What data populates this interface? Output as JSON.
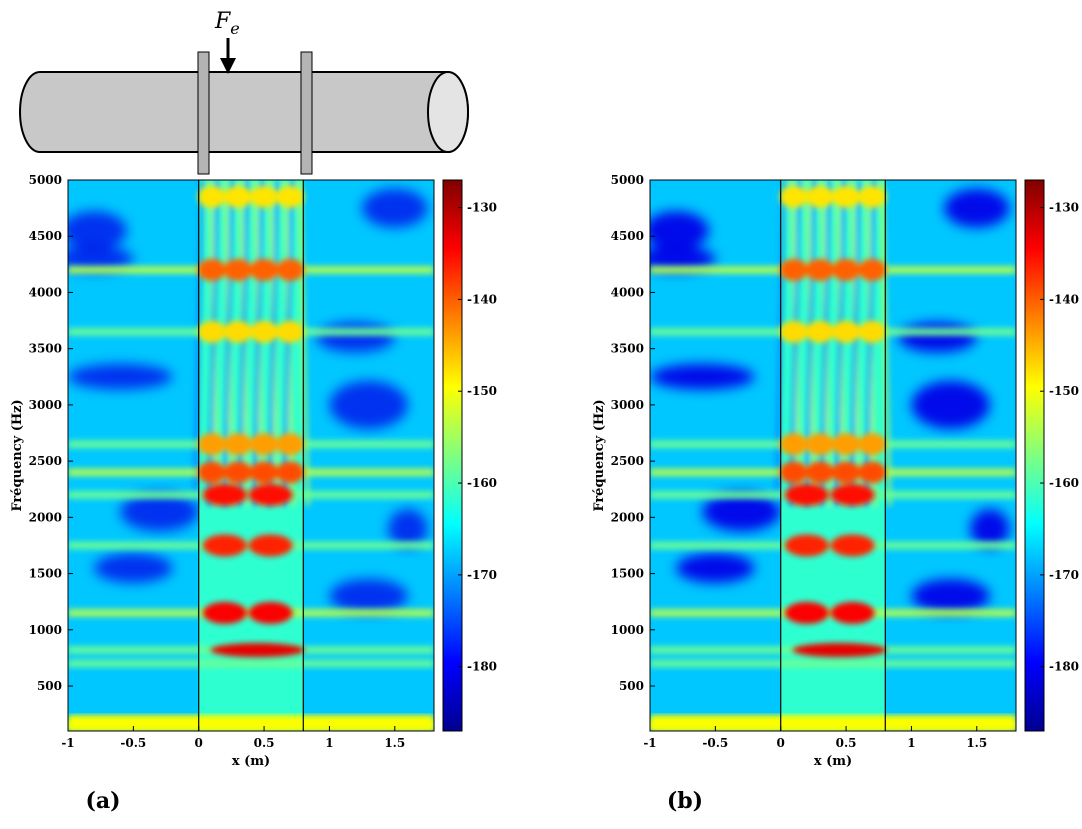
{
  "figure": {
    "force_label": "F",
    "force_subscript": "e"
  },
  "chart_data": [
    {
      "type": "heatmap",
      "panel_label": "(a)",
      "xlabel": "x (m)",
      "ylabel": "Fréquency (Hz)",
      "x_ticks": [
        "-1",
        "-0.5",
        "0",
        "0.5",
        "1",
        "1.5"
      ],
      "x_tick_values": [
        -1,
        -0.5,
        0,
        0.5,
        1,
        1.5
      ],
      "y_ticks": [
        "500",
        "1000",
        "1500",
        "2000",
        "2500",
        "3000",
        "3500",
        "4000",
        "4500",
        "5000"
      ],
      "y_tick_values": [
        500,
        1000,
        1500,
        2000,
        2500,
        3000,
        3500,
        4000,
        4500,
        5000
      ],
      "xlim": [
        -1,
        1.8
      ],
      "ylim": [
        100,
        5000
      ],
      "colorbar_ticks": [
        "-130",
        "-140",
        "-150",
        "-160",
        "-170",
        "-180"
      ],
      "colorbar_tick_values": [
        -130,
        -140,
        -150,
        -160,
        -170,
        -180
      ],
      "clim": [
        -187,
        -127
      ],
      "colormap": "jet",
      "support_lines_x": [
        0,
        0.8
      ],
      "resonance_bands_hz": [
        150,
        700,
        820,
        1150,
        1750,
        2200,
        2400,
        2650,
        3650,
        4200
      ],
      "hotspot_x": [
        0.2,
        0.55
      ]
    },
    {
      "type": "heatmap",
      "panel_label": "(b)",
      "xlabel": "x (m)",
      "ylabel": "Fréquency (Hz)",
      "x_ticks": [
        "-1",
        "-0.5",
        "0",
        "0.5",
        "1",
        "1.5"
      ],
      "x_tick_values": [
        -1,
        -0.5,
        0,
        0.5,
        1,
        1.5
      ],
      "y_ticks": [
        "500",
        "1000",
        "1500",
        "2000",
        "2500",
        "3000",
        "3500",
        "4000",
        "4500",
        "5000"
      ],
      "y_tick_values": [
        500,
        1000,
        1500,
        2000,
        2500,
        3000,
        3500,
        4000,
        4500,
        5000
      ],
      "xlim": [
        -1,
        1.8
      ],
      "ylim": [
        100,
        5000
      ],
      "colorbar_ticks": [
        "-130",
        "-140",
        "-150",
        "-160",
        "-170",
        "-180"
      ],
      "colorbar_tick_values": [
        -130,
        -140,
        -150,
        -160,
        -170,
        -180
      ],
      "clim": [
        -187,
        -127
      ],
      "colormap": "jet",
      "support_lines_x": [
        0,
        0.8
      ],
      "resonance_bands_hz": [
        150,
        700,
        820,
        1150,
        1750,
        2200,
        2400,
        2650,
        3650,
        4200
      ],
      "hotspot_x": [
        0.2,
        0.55
      ]
    }
  ]
}
